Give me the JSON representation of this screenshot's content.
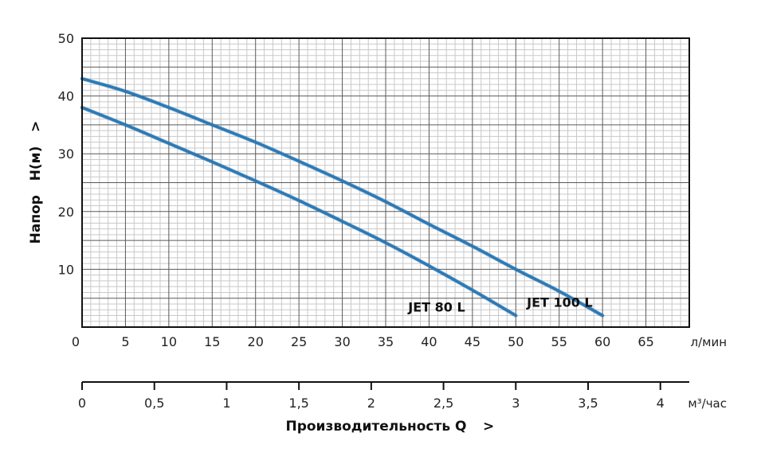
{
  "chart_data": {
    "type": "line",
    "title": "",
    "xlabel": "Производительность Q",
    "xlabel_arrow": ">",
    "ylabel": "Напор   H(м)",
    "ylabel_arrow": ">",
    "x_unit": "л/мин",
    "x2_unit": "м³/час",
    "xlim": [
      0,
      70
    ],
    "ylim": [
      0,
      50
    ],
    "x_ticks": [
      0,
      5,
      10,
      15,
      20,
      25,
      30,
      35,
      40,
      45,
      50,
      55,
      60,
      65
    ],
    "y_ticks": [
      10,
      20,
      30,
      40,
      50
    ],
    "x2_ticks": [
      {
        "value": 0,
        "label": "0"
      },
      {
        "value": 0.5,
        "label": "0,5"
      },
      {
        "value": 1,
        "label": "1"
      },
      {
        "value": 1.5,
        "label": "1,5"
      },
      {
        "value": 2,
        "label": "2"
      },
      {
        "value": 2.5,
        "label": "2,5"
      },
      {
        "value": 3,
        "label": "3"
      },
      {
        "value": 3.5,
        "label": "3,5"
      },
      {
        "value": 4,
        "label": "4"
      }
    ],
    "grid": true,
    "series": [
      {
        "name": "JET 100 L",
        "color": "#2a7ab8",
        "x": [
          0,
          5,
          10,
          15,
          20,
          25,
          30,
          35,
          40,
          45,
          50,
          55,
          60
        ],
        "y": [
          43,
          40.8,
          38,
          35,
          32,
          28.7,
          25.3,
          21.7,
          17.8,
          14,
          10,
          6.2,
          2
        ]
      },
      {
        "name": "JET 80 L",
        "color": "#2a7ab8",
        "x": [
          0,
          5,
          10,
          15,
          20,
          25,
          30,
          35,
          40,
          45,
          50
        ],
        "y": [
          38,
          35,
          31.8,
          28.6,
          25.3,
          21.9,
          18.3,
          14.6,
          10.6,
          6.4,
          2
        ]
      }
    ]
  }
}
